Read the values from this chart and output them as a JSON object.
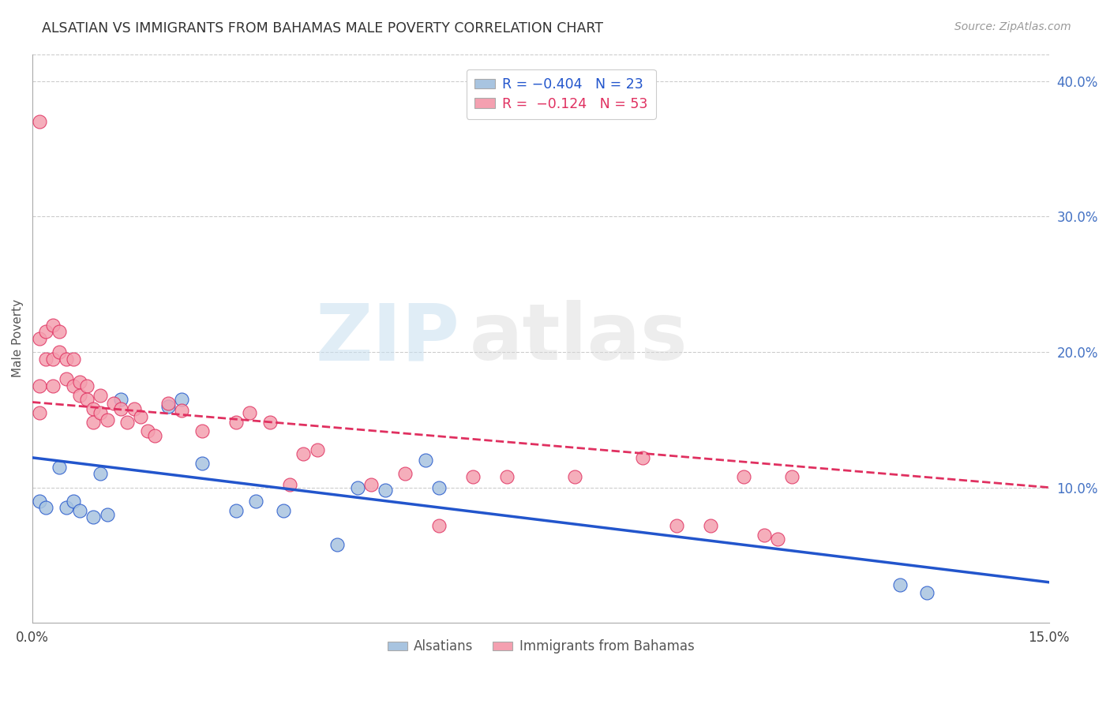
{
  "title": "ALSATIAN VS IMMIGRANTS FROM BAHAMAS MALE POVERTY CORRELATION CHART",
  "source": "Source: ZipAtlas.com",
  "ylabel": "Male Poverty",
  "right_yticks": [
    "40.0%",
    "30.0%",
    "20.0%",
    "10.0%"
  ],
  "right_ytick_vals": [
    0.4,
    0.3,
    0.2,
    0.1
  ],
  "xlim": [
    0.0,
    0.15
  ],
  "ylim": [
    0.0,
    0.42
  ],
  "legend_r_blue": "R = −0.404",
  "legend_n_blue": "N = 23",
  "legend_r_pink": "R =  −0.124",
  "legend_n_pink": "N = 53",
  "color_blue": "#a8c4e0",
  "color_pink": "#f4a0b0",
  "line_blue": "#2255cc",
  "line_pink": "#e03060",
  "watermark_zip": "ZIP",
  "watermark_atlas": "atlas",
  "blue_line_x": [
    0.0,
    0.15
  ],
  "blue_line_y": [
    0.122,
    0.03
  ],
  "pink_line_x": [
    0.0,
    0.15
  ],
  "pink_line_y": [
    0.163,
    0.1
  ],
  "blue_x": [
    0.001,
    0.002,
    0.004,
    0.005,
    0.006,
    0.007,
    0.009,
    0.01,
    0.011,
    0.013,
    0.02,
    0.022,
    0.025,
    0.03,
    0.033,
    0.037,
    0.045,
    0.048,
    0.052,
    0.058,
    0.06,
    0.128,
    0.132
  ],
  "blue_y": [
    0.09,
    0.085,
    0.115,
    0.085,
    0.09,
    0.083,
    0.078,
    0.11,
    0.08,
    0.165,
    0.16,
    0.165,
    0.118,
    0.083,
    0.09,
    0.083,
    0.058,
    0.1,
    0.098,
    0.12,
    0.1,
    0.028,
    0.022
  ],
  "pink_x": [
    0.001,
    0.001,
    0.001,
    0.001,
    0.002,
    0.002,
    0.003,
    0.003,
    0.003,
    0.004,
    0.004,
    0.005,
    0.005,
    0.006,
    0.006,
    0.007,
    0.007,
    0.008,
    0.008,
    0.009,
    0.009,
    0.01,
    0.01,
    0.011,
    0.012,
    0.013,
    0.014,
    0.015,
    0.016,
    0.017,
    0.018,
    0.02,
    0.022,
    0.025,
    0.03,
    0.032,
    0.035,
    0.038,
    0.04,
    0.042,
    0.05,
    0.055,
    0.06,
    0.065,
    0.07,
    0.08,
    0.09,
    0.095,
    0.1,
    0.105,
    0.108,
    0.11,
    0.112
  ],
  "pink_y": [
    0.37,
    0.21,
    0.175,
    0.155,
    0.215,
    0.195,
    0.22,
    0.195,
    0.175,
    0.215,
    0.2,
    0.195,
    0.18,
    0.195,
    0.175,
    0.178,
    0.168,
    0.175,
    0.165,
    0.158,
    0.148,
    0.168,
    0.155,
    0.15,
    0.162,
    0.158,
    0.148,
    0.158,
    0.152,
    0.142,
    0.138,
    0.162,
    0.157,
    0.142,
    0.148,
    0.155,
    0.148,
    0.102,
    0.125,
    0.128,
    0.102,
    0.11,
    0.072,
    0.108,
    0.108,
    0.108,
    0.122,
    0.072,
    0.072,
    0.108,
    0.065,
    0.062,
    0.108
  ]
}
